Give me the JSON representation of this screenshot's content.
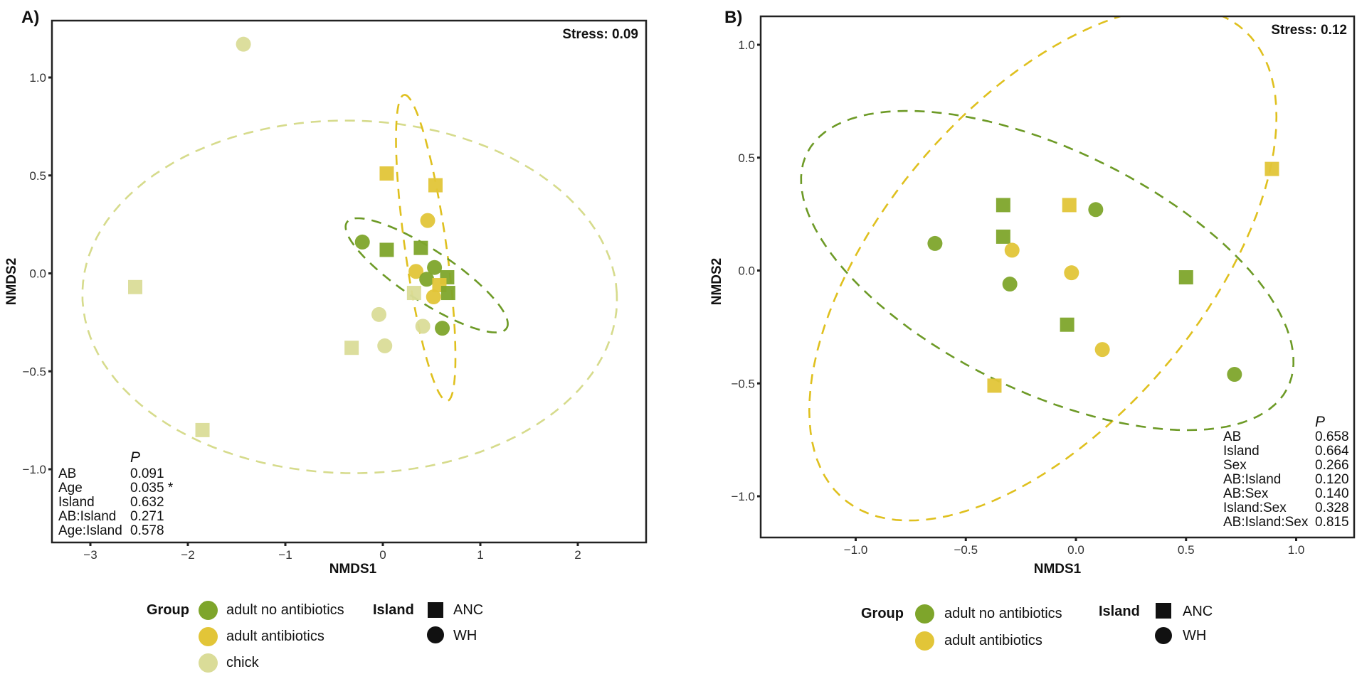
{
  "colors": {
    "adult no antibiotics": "#7ea52b",
    "adult antibiotics": "#e2c538",
    "chick": "#dadc98",
    "ellipse_adult no antibiotics": "#6d9a26",
    "ellipse_adult antibiotics": "#dfc01e",
    "ellipse_chick": "#d6db8c"
  },
  "chart_data": [
    {
      "type": "scatter",
      "panel_label": "A)",
      "stress": "Stress: 0.09",
      "xlabel": "NMDS1",
      "ylabel": "NMDS2",
      "xticks": [
        -3,
        -2,
        -1,
        0,
        1,
        2
      ],
      "xtick_labels": [
        "−3",
        "−2",
        "−1",
        "0",
        "1",
        "2"
      ],
      "yticks": [
        1.0,
        0.5,
        0.0,
        -0.5,
        -1.0
      ],
      "ytick_labels": [
        "1.0",
        "0.5",
        "0.0",
        "−0.5",
        "−1.0"
      ],
      "grid": false,
      "points": [
        {
          "group": "chick",
          "island": "WH",
          "x": -1.43,
          "y": 1.17
        },
        {
          "group": "adult antibiotics",
          "island": "ANC",
          "x": 0.04,
          "y": 0.51
        },
        {
          "group": "adult antibiotics",
          "island": "ANC",
          "x": 0.54,
          "y": 0.45
        },
        {
          "group": "adult antibiotics",
          "island": "WH",
          "x": 0.46,
          "y": 0.27
        },
        {
          "group": "adult no antibiotics",
          "island": "WH",
          "x": -0.21,
          "y": 0.16
        },
        {
          "group": "adult no antibiotics",
          "island": "ANC",
          "x": 0.04,
          "y": 0.12
        },
        {
          "group": "adult no antibiotics",
          "island": "ANC",
          "x": 0.39,
          "y": 0.13
        },
        {
          "group": "adult antibiotics",
          "island": "WH",
          "x": 0.34,
          "y": 0.01
        },
        {
          "group": "adult no antibiotics",
          "island": "WH",
          "x": 0.53,
          "y": 0.03
        },
        {
          "group": "adult no antibiotics",
          "island": "WH",
          "x": 0.45,
          "y": -0.03
        },
        {
          "group": "adult no antibiotics",
          "island": "ANC",
          "x": 0.66,
          "y": -0.02
        },
        {
          "group": "adult antibiotics",
          "island": "ANC",
          "x": 0.58,
          "y": -0.06
        },
        {
          "group": "adult no antibiotics",
          "island": "ANC",
          "x": 0.67,
          "y": -0.1
        },
        {
          "group": "adult antibiotics",
          "island": "WH",
          "x": 0.52,
          "y": -0.12
        },
        {
          "group": "chick",
          "island": "ANC",
          "x": 0.32,
          "y": -0.1
        },
        {
          "group": "chick",
          "island": "WH",
          "x": -0.04,
          "y": -0.21
        },
        {
          "group": "chick",
          "island": "WH",
          "x": 0.41,
          "y": -0.27
        },
        {
          "group": "adult no antibiotics",
          "island": "WH",
          "x": 0.61,
          "y": -0.28
        },
        {
          "group": "chick",
          "island": "WH",
          "x": 0.02,
          "y": -0.37
        },
        {
          "group": "chick",
          "island": "ANC",
          "x": -0.32,
          "y": -0.38
        },
        {
          "group": "chick",
          "island": "ANC",
          "x": -2.54,
          "y": -0.07
        },
        {
          "group": "chick",
          "island": "ANC",
          "x": -1.85,
          "y": -0.8
        }
      ],
      "ellipses": [
        {
          "group": "chick",
          "center": [
            -0.34,
            -0.12
          ],
          "u": [
            2.74,
            0.02
          ],
          "v": [
            -0.1,
            0.9
          ]
        },
        {
          "group": "adult antibiotics",
          "center": [
            0.44,
            0.13
          ],
          "u": [
            -0.23,
            0.78
          ],
          "v": [
            0.2,
            0.05
          ]
        },
        {
          "group": "adult no antibiotics",
          "center": [
            0.45,
            -0.01
          ],
          "u": [
            0.82,
            -0.27
          ],
          "v": [
            0.14,
            0.11
          ]
        }
      ],
      "stats_header": "P",
      "stats": [
        {
          "term": "AB",
          "p": "0.091"
        },
        {
          "term": "Age",
          "p": "0.035 *"
        },
        {
          "term": "Island",
          "p": "0.632"
        },
        {
          "term": "AB:Island",
          "p": "0.271"
        },
        {
          "term": "Age:Island",
          "p": "0.578"
        }
      ]
    },
    {
      "type": "scatter",
      "panel_label": "B)",
      "stress": "Stress: 0.12",
      "xlabel": "NMDS1",
      "ylabel": "NMDS2",
      "xticks": [
        -1.0,
        -0.5,
        0.0,
        0.5,
        1.0
      ],
      "xtick_labels": [
        "−1.0",
        "−0.5",
        "0.0",
        "0.5",
        "1.0"
      ],
      "yticks": [
        1.0,
        0.5,
        0.0,
        -0.5,
        -1.0
      ],
      "ytick_labels": [
        "1.0",
        "0.5",
        "0.0",
        "−0.5",
        "−1.0"
      ],
      "grid": false,
      "points": [
        {
          "group": "adult no antibiotics",
          "island": "WH",
          "x": -0.64,
          "y": 0.12
        },
        {
          "group": "adult no antibiotics",
          "island": "ANC",
          "x": -0.33,
          "y": 0.29
        },
        {
          "group": "adult no antibiotics",
          "island": "ANC",
          "x": -0.33,
          "y": 0.15
        },
        {
          "group": "adult antibiotics",
          "island": "WH",
          "x": -0.29,
          "y": 0.09
        },
        {
          "group": "adult no antibiotics",
          "island": "WH",
          "x": -0.3,
          "y": -0.06
        },
        {
          "group": "adult antibiotics",
          "island": "ANC",
          "x": -0.03,
          "y": 0.29
        },
        {
          "group": "adult no antibiotics",
          "island": "WH",
          "x": 0.09,
          "y": 0.27
        },
        {
          "group": "adult antibiotics",
          "island": "WH",
          "x": -0.02,
          "y": -0.01
        },
        {
          "group": "adult no antibiotics",
          "island": "ANC",
          "x": 0.5,
          "y": -0.03
        },
        {
          "group": "adult no antibiotics",
          "island": "ANC",
          "x": -0.04,
          "y": -0.24
        },
        {
          "group": "adult antibiotics",
          "island": "WH",
          "x": 0.12,
          "y": -0.35
        },
        {
          "group": "adult antibiotics",
          "island": "ANC",
          "x": -0.37,
          "y": -0.51
        },
        {
          "group": "adult no antibiotics",
          "island": "WH",
          "x": 0.72,
          "y": -0.46
        },
        {
          "group": "adult antibiotics",
          "island": "ANC",
          "x": 0.89,
          "y": 0.45
        }
      ],
      "ellipses": [
        {
          "group": "adult antibiotics",
          "center": [
            -0.15,
            0.03
          ],
          "u": [
            0.75,
            1.12
          ],
          "v": [
            -0.75,
            0.2
          ]
        },
        {
          "group": "adult no antibiotics",
          "center": [
            -0.13,
            0.0
          ],
          "u": [
            1.1,
            -0.5
          ],
          "v": [
            0.2,
            0.5
          ]
        }
      ],
      "stats_header": "P",
      "stats": [
        {
          "term": "AB",
          "p": "0.658"
        },
        {
          "term": "Island",
          "p": "0.664"
        },
        {
          "term": "Sex",
          "p": "0.266"
        },
        {
          "term": "AB:Island",
          "p": "0.120"
        },
        {
          "term": "AB:Sex",
          "p": "0.140"
        },
        {
          "term": "Island:Sex",
          "p": "0.328"
        },
        {
          "term": "AB:Island:Sex",
          "p": "0.815"
        }
      ]
    }
  ],
  "legend_a": {
    "group_title": "Group",
    "groups": [
      "adult no antibiotics",
      "adult antibiotics",
      "chick"
    ],
    "island_title": "Island",
    "islands": [
      "ANC",
      "WH"
    ]
  },
  "legend_b": {
    "group_title": "Group",
    "groups": [
      "adult no antibiotics",
      "adult antibiotics"
    ],
    "island_title": "Island",
    "islands": [
      "ANC",
      "WH"
    ]
  }
}
